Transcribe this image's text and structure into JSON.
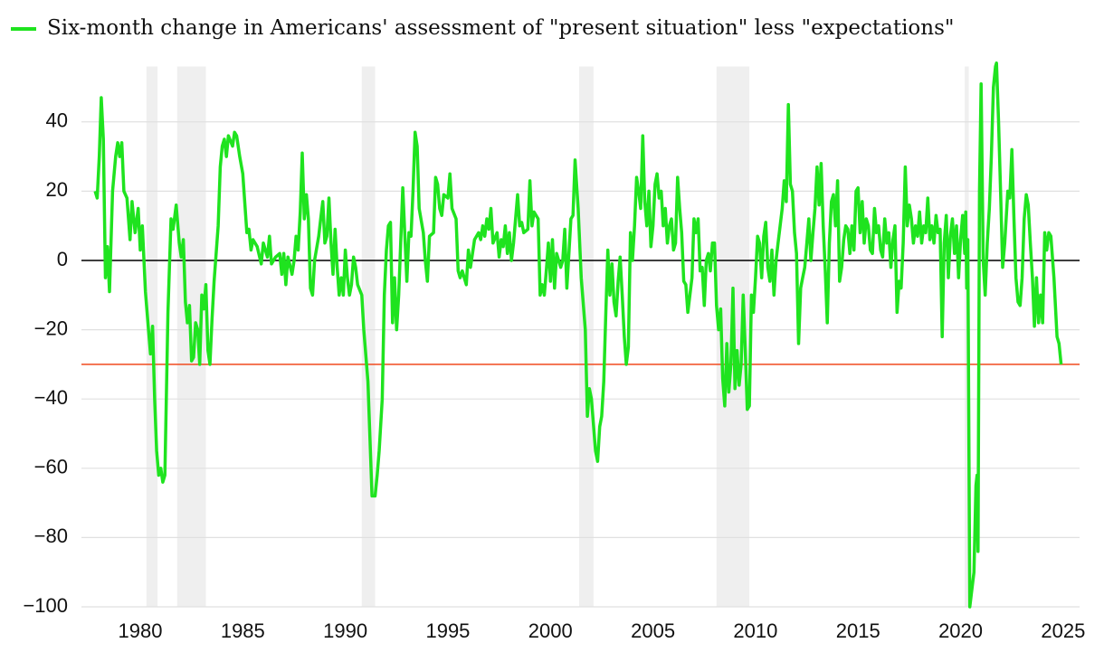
{
  "chart_data": {
    "type": "line",
    "x": [
      1977.8,
      1977.9,
      1978.0,
      1978.1,
      1978.2,
      1978.3,
      1978.4,
      1978.5,
      1978.65,
      1978.8,
      1978.9,
      1979.0,
      1979.1,
      1979.2,
      1979.35,
      1979.5,
      1979.6,
      1979.75,
      1979.9,
      1980.0,
      1980.1,
      1980.25,
      1980.4,
      1980.5,
      1980.6,
      1980.7,
      1980.8,
      1980.9,
      1981.0,
      1981.1,
      1981.2,
      1981.35,
      1981.5,
      1981.6,
      1981.75,
      1981.9,
      1982.0,
      1982.1,
      1982.2,
      1982.3,
      1982.4,
      1982.5,
      1982.6,
      1982.7,
      1982.8,
      1982.9,
      1983.0,
      1983.1,
      1983.2,
      1983.3,
      1983.4,
      1983.5,
      1983.6,
      1983.8,
      1983.9,
      1984.0,
      1984.1,
      1984.2,
      1984.3,
      1984.5,
      1984.6,
      1984.7,
      1984.85,
      1985.0,
      1985.2,
      1985.3,
      1985.4,
      1985.5,
      1985.7,
      1985.9,
      1986.0,
      1986.2,
      1986.3,
      1986.4,
      1986.6,
      1986.8,
      1986.9,
      1987.0,
      1987.1,
      1987.2,
      1987.4,
      1987.5,
      1987.6,
      1987.7,
      1987.8,
      1987.9,
      1988.0,
      1988.1,
      1988.2,
      1988.3,
      1988.4,
      1988.5,
      1988.7,
      1988.8,
      1988.9,
      1989.0,
      1989.1,
      1989.2,
      1989.3,
      1989.4,
      1989.5,
      1989.6,
      1989.7,
      1989.8,
      1989.9,
      1990.0,
      1990.1,
      1990.2,
      1990.3,
      1990.4,
      1990.5,
      1990.6,
      1990.8,
      1990.9,
      1991.1,
      1991.3,
      1991.45,
      1991.55,
      1991.65,
      1991.8,
      1991.9,
      1992.0,
      1992.1,
      1992.2,
      1992.3,
      1992.4,
      1992.5,
      1992.6,
      1992.8,
      1993.0,
      1993.1,
      1993.2,
      1993.3,
      1993.4,
      1993.5,
      1993.6,
      1993.8,
      1993.9,
      1994.0,
      1994.1,
      1994.3,
      1994.4,
      1994.5,
      1994.6,
      1994.7,
      1994.8,
      1995.0,
      1995.1,
      1995.2,
      1995.4,
      1995.5,
      1995.6,
      1995.7,
      1995.9,
      1996.0,
      1996.1,
      1996.3,
      1996.5,
      1996.6,
      1996.7,
      1996.8,
      1996.9,
      1997.0,
      1997.1,
      1997.2,
      1997.4,
      1997.5,
      1997.6,
      1997.7,
      1997.8,
      1997.9,
      1998.0,
      1998.1,
      1998.2,
      1998.4,
      1998.5,
      1998.6,
      1998.7,
      1998.9,
      1999.0,
      1999.1,
      1999.2,
      1999.4,
      1999.5,
      1999.6,
      1999.7,
      1999.8,
      1999.9,
      2000.0,
      2000.1,
      2000.2,
      2000.3,
      2000.5,
      2000.6,
      2000.7,
      2000.8,
      2000.9,
      2001.0,
      2001.1,
      2001.2,
      2001.35,
      2001.5,
      2001.7,
      2001.8,
      2001.9,
      2002.0,
      2002.2,
      2002.3,
      2002.4,
      2002.5,
      2002.6,
      2002.7,
      2002.8,
      2002.9,
      2003.0,
      2003.1,
      2003.2,
      2003.3,
      2003.4,
      2003.5,
      2003.6,
      2003.7,
      2003.8,
      2003.9,
      2004.0,
      2004.1,
      2004.2,
      2004.3,
      2004.4,
      2004.5,
      2004.6,
      2004.7,
      2004.8,
      2004.9,
      2005.0,
      2005.1,
      2005.2,
      2005.3,
      2005.4,
      2005.5,
      2005.6,
      2005.7,
      2005.8,
      2005.9,
      2006.0,
      2006.1,
      2006.2,
      2006.3,
      2006.4,
      2006.5,
      2006.6,
      2006.7,
      2006.8,
      2006.9,
      2007.0,
      2007.1,
      2007.2,
      2007.3,
      2007.4,
      2007.5,
      2007.6,
      2007.7,
      2007.8,
      2007.9,
      2008.0,
      2008.1,
      2008.2,
      2008.3,
      2008.4,
      2008.5,
      2008.6,
      2008.7,
      2008.8,
      2008.9,
      2009.0,
      2009.1,
      2009.2,
      2009.3,
      2009.4,
      2009.5,
      2009.6,
      2009.7,
      2009.8,
      2009.9,
      2010.0,
      2010.1,
      2010.2,
      2010.3,
      2010.4,
      2010.5,
      2010.6,
      2010.7,
      2010.8,
      2010.9,
      2011.0,
      2011.1,
      2011.2,
      2011.3,
      2011.4,
      2011.5,
      2011.6,
      2011.7,
      2011.8,
      2011.9,
      2012.0,
      2012.1,
      2012.2,
      2012.3,
      2012.4,
      2012.5,
      2012.6,
      2012.7,
      2012.8,
      2012.9,
      2013.0,
      2013.1,
      2013.2,
      2013.3,
      2013.4,
      2013.5,
      2013.6,
      2013.7,
      2013.8,
      2013.9,
      2014.0,
      2014.1,
      2014.2,
      2014.3,
      2014.4,
      2014.5,
      2014.6,
      2014.7,
      2014.8,
      2014.9,
      2015.0,
      2015.1,
      2015.2,
      2015.3,
      2015.4,
      2015.5,
      2015.6,
      2015.7,
      2015.8,
      2015.9,
      2016.0,
      2016.1,
      2016.2,
      2016.3,
      2016.4,
      2016.5,
      2016.6,
      2016.7,
      2016.8,
      2016.9,
      2017.0,
      2017.1,
      2017.2,
      2017.3,
      2017.4,
      2017.5,
      2017.6,
      2017.7,
      2017.8,
      2017.9,
      2018.0,
      2018.1,
      2018.2,
      2018.3,
      2018.4,
      2018.5,
      2018.6,
      2018.7,
      2018.8,
      2018.9,
      2019.0,
      2019.1,
      2019.2,
      2019.3,
      2019.4,
      2019.5,
      2019.6,
      2019.7,
      2019.8,
      2019.9,
      2020.0,
      2020.1,
      2020.2,
      2020.25,
      2020.3,
      2020.35,
      2020.45,
      2020.55,
      2020.65,
      2020.75,
      2020.8,
      2020.85,
      2020.92,
      2021.0,
      2021.1,
      2021.2,
      2021.3,
      2021.4,
      2021.5,
      2021.6,
      2021.7,
      2021.75,
      2021.85,
      2021.95,
      2022.05,
      2022.15,
      2022.3,
      2022.4,
      2022.5,
      2022.6,
      2022.7,
      2022.8,
      2022.9,
      2023.0,
      2023.1,
      2023.2,
      2023.3,
      2023.4,
      2023.5,
      2023.6,
      2023.7,
      2023.8,
      2023.9,
      2024.0,
      2024.1,
      2024.2,
      2024.3,
      2024.4,
      2024.55,
      2024.7,
      2024.8,
      2024.9
    ],
    "series": [
      {
        "name": "Six-month change in Americans' assessment of \"present situation\" less \"expectations\"",
        "color": "#1fe31f",
        "values": [
          20,
          18,
          30,
          47,
          35,
          -5,
          4,
          -9,
          20,
          30,
          34,
          30,
          34,
          20,
          18,
          6,
          17,
          8,
          15,
          3,
          10,
          -9,
          -20,
          -27,
          -19,
          -40,
          -55,
          -62,
          -60,
          -64,
          -62,
          -15,
          12,
          9,
          16,
          5,
          1,
          6,
          -12,
          -18,
          -13,
          -29,
          -28,
          -18,
          -20,
          -30,
          -10,
          -14,
          -7,
          -26,
          -30,
          -17,
          -6,
          10,
          27,
          33,
          35,
          30,
          36,
          33,
          37,
          36,
          30,
          25,
          8,
          9,
          3,
          6,
          4,
          -1,
          5,
          1,
          7,
          -1,
          1,
          2,
          -4,
          2,
          -7,
          1,
          -4,
          0,
          7,
          3,
          14,
          31,
          12,
          19,
          12,
          -8,
          -10,
          0,
          7,
          12,
          17,
          5,
          7,
          18,
          5,
          -4,
          9,
          -2,
          -10,
          -5,
          -10,
          3,
          -5,
          -10,
          -7,
          1,
          -2,
          -7,
          -10,
          -20,
          -35,
          -68,
          -68,
          -62,
          -55,
          -40,
          -10,
          3,
          10,
          11,
          -18,
          -5,
          -20,
          -10,
          21,
          -6,
          8,
          7,
          20,
          37,
          33,
          15,
          8,
          0,
          -6,
          7,
          8,
          24,
          22,
          15,
          13,
          19,
          18,
          25,
          15,
          12,
          -3,
          -5,
          -3,
          -7,
          3,
          -2,
          6,
          8,
          6,
          10,
          7,
          12,
          9,
          15,
          5,
          8,
          1,
          6,
          4,
          10,
          2,
          8,
          0,
          5,
          19,
          10,
          11,
          8,
          9,
          23,
          10,
          14,
          12,
          -10,
          -7,
          -10,
          -3,
          5,
          -6,
          6,
          -8,
          2,
          -2,
          0,
          9,
          -8,
          2,
          12,
          13,
          29,
          15,
          -5,
          -20,
          -45,
          -37,
          -40,
          -55,
          -58,
          -48,
          -45,
          -35,
          -15,
          3,
          -10,
          -1,
          -12,
          -16,
          -6,
          1,
          -10,
          -22,
          -30,
          -25,
          8,
          0,
          10,
          24,
          20,
          15,
          36,
          17,
          10,
          20,
          4,
          10,
          22,
          25,
          18,
          20,
          10,
          15,
          5,
          10,
          12,
          3,
          5,
          24,
          15,
          8,
          -6,
          -7,
          -15,
          -10,
          -5,
          12,
          8,
          12,
          -3,
          -2,
          -13,
          0,
          2,
          -3,
          5,
          5,
          -13,
          -20,
          -14,
          -34,
          -42,
          -24,
          -38,
          -30,
          -8,
          -37,
          -26,
          -36,
          -30,
          -10,
          -26,
          -43,
          -42,
          -10,
          -15,
          -5,
          7,
          5,
          -5,
          7,
          11,
          -2,
          -6,
          3,
          -10,
          0,
          5,
          10,
          15,
          23,
          17,
          45,
          22,
          20,
          8,
          2,
          -24,
          -8,
          -5,
          -2,
          5,
          12,
          0,
          8,
          15,
          27,
          16,
          28,
          10,
          -3,
          -18,
          5,
          17,
          19,
          10,
          23,
          -6,
          -2,
          6,
          10,
          9,
          2,
          10,
          3,
          20,
          21,
          8,
          17,
          5,
          12,
          10,
          3,
          2,
          15,
          8,
          10,
          3,
          1,
          12,
          5,
          8,
          -2,
          6,
          10,
          -15,
          -6,
          -8,
          5,
          27,
          10,
          16,
          12,
          5,
          10,
          7,
          14,
          5,
          10,
          8,
          18,
          6,
          10,
          5,
          13,
          8,
          9,
          -22,
          5,
          13,
          -5,
          7,
          12,
          2,
          10,
          -5,
          6,
          13,
          2,
          14,
          -8,
          6,
          -100,
          -95,
          -90,
          -65,
          -62,
          -84,
          20,
          51,
          0,
          -10,
          5,
          15,
          30,
          50,
          56,
          57,
          40,
          20,
          -2,
          5,
          20,
          18,
          32,
          12,
          -5,
          -12,
          -13,
          -5,
          12,
          19,
          16,
          5,
          -5,
          -19,
          -5,
          -18,
          -10,
          -18,
          8,
          3,
          8,
          7,
          -5,
          -22,
          -24,
          -30
        ]
      }
    ],
    "xlim": [
      1977,
      2025.8
    ],
    "ylim": [
      -100,
      56
    ],
    "xticks": [
      1980,
      1985,
      1990,
      1995,
      2000,
      2005,
      2010,
      2015,
      2020,
      2025
    ],
    "yticks": [
      40,
      20,
      0,
      {
        "value": -20,
        "label": "−20"
      },
      {
        "value": -40,
        "label": "−40"
      },
      {
        "value": -60,
        "label": "−60"
      },
      {
        "value": -80,
        "label": "−80"
      },
      {
        "value": -100,
        "label": "−100"
      }
    ],
    "grid": true,
    "recessions": [
      [
        1980.3,
        1980.84
      ],
      [
        1981.8,
        1983.2
      ],
      [
        1990.8,
        1991.45
      ],
      [
        2001.4,
        2002.1
      ],
      [
        2008.1,
        2009.7
      ],
      [
        2020.2,
        2020.4
      ]
    ],
    "recession_color": "#efefef",
    "reference_lines": [
      {
        "value": 0,
        "color": "#000000"
      },
      {
        "value": -30,
        "color": "#f04a1e"
      }
    ]
  }
}
